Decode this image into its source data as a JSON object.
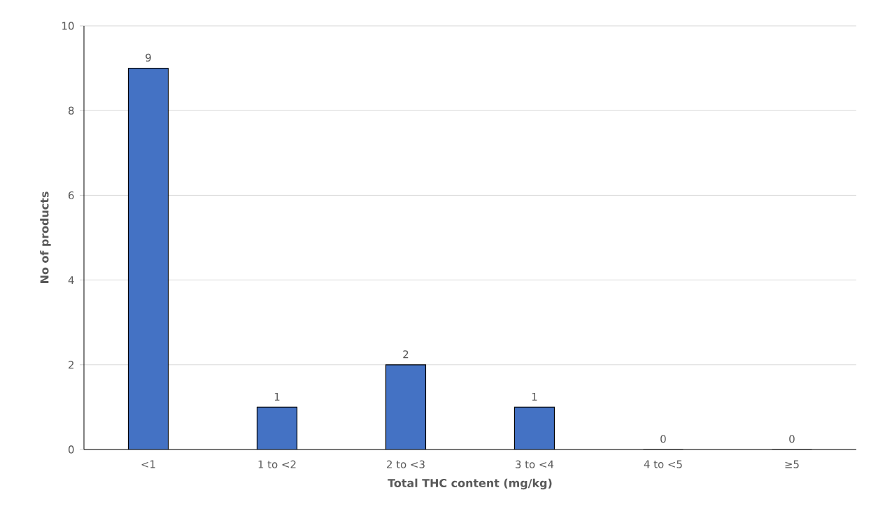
{
  "chart_data": {
    "type": "bar",
    "xlabel": "Total THC content (mg/kg)",
    "ylabel": "No of products",
    "categories": [
      "<1",
      "1 to <2",
      "2 to <3",
      "3 to <4",
      "4 to <5",
      "≥5"
    ],
    "values": [
      9,
      1,
      2,
      1,
      0,
      0
    ],
    "color": "#4472c4",
    "ylim": [
      0,
      10
    ],
    "yticks": [
      0,
      2,
      4,
      6,
      8,
      10
    ],
    "grid": "y",
    "data_labels": true
  }
}
